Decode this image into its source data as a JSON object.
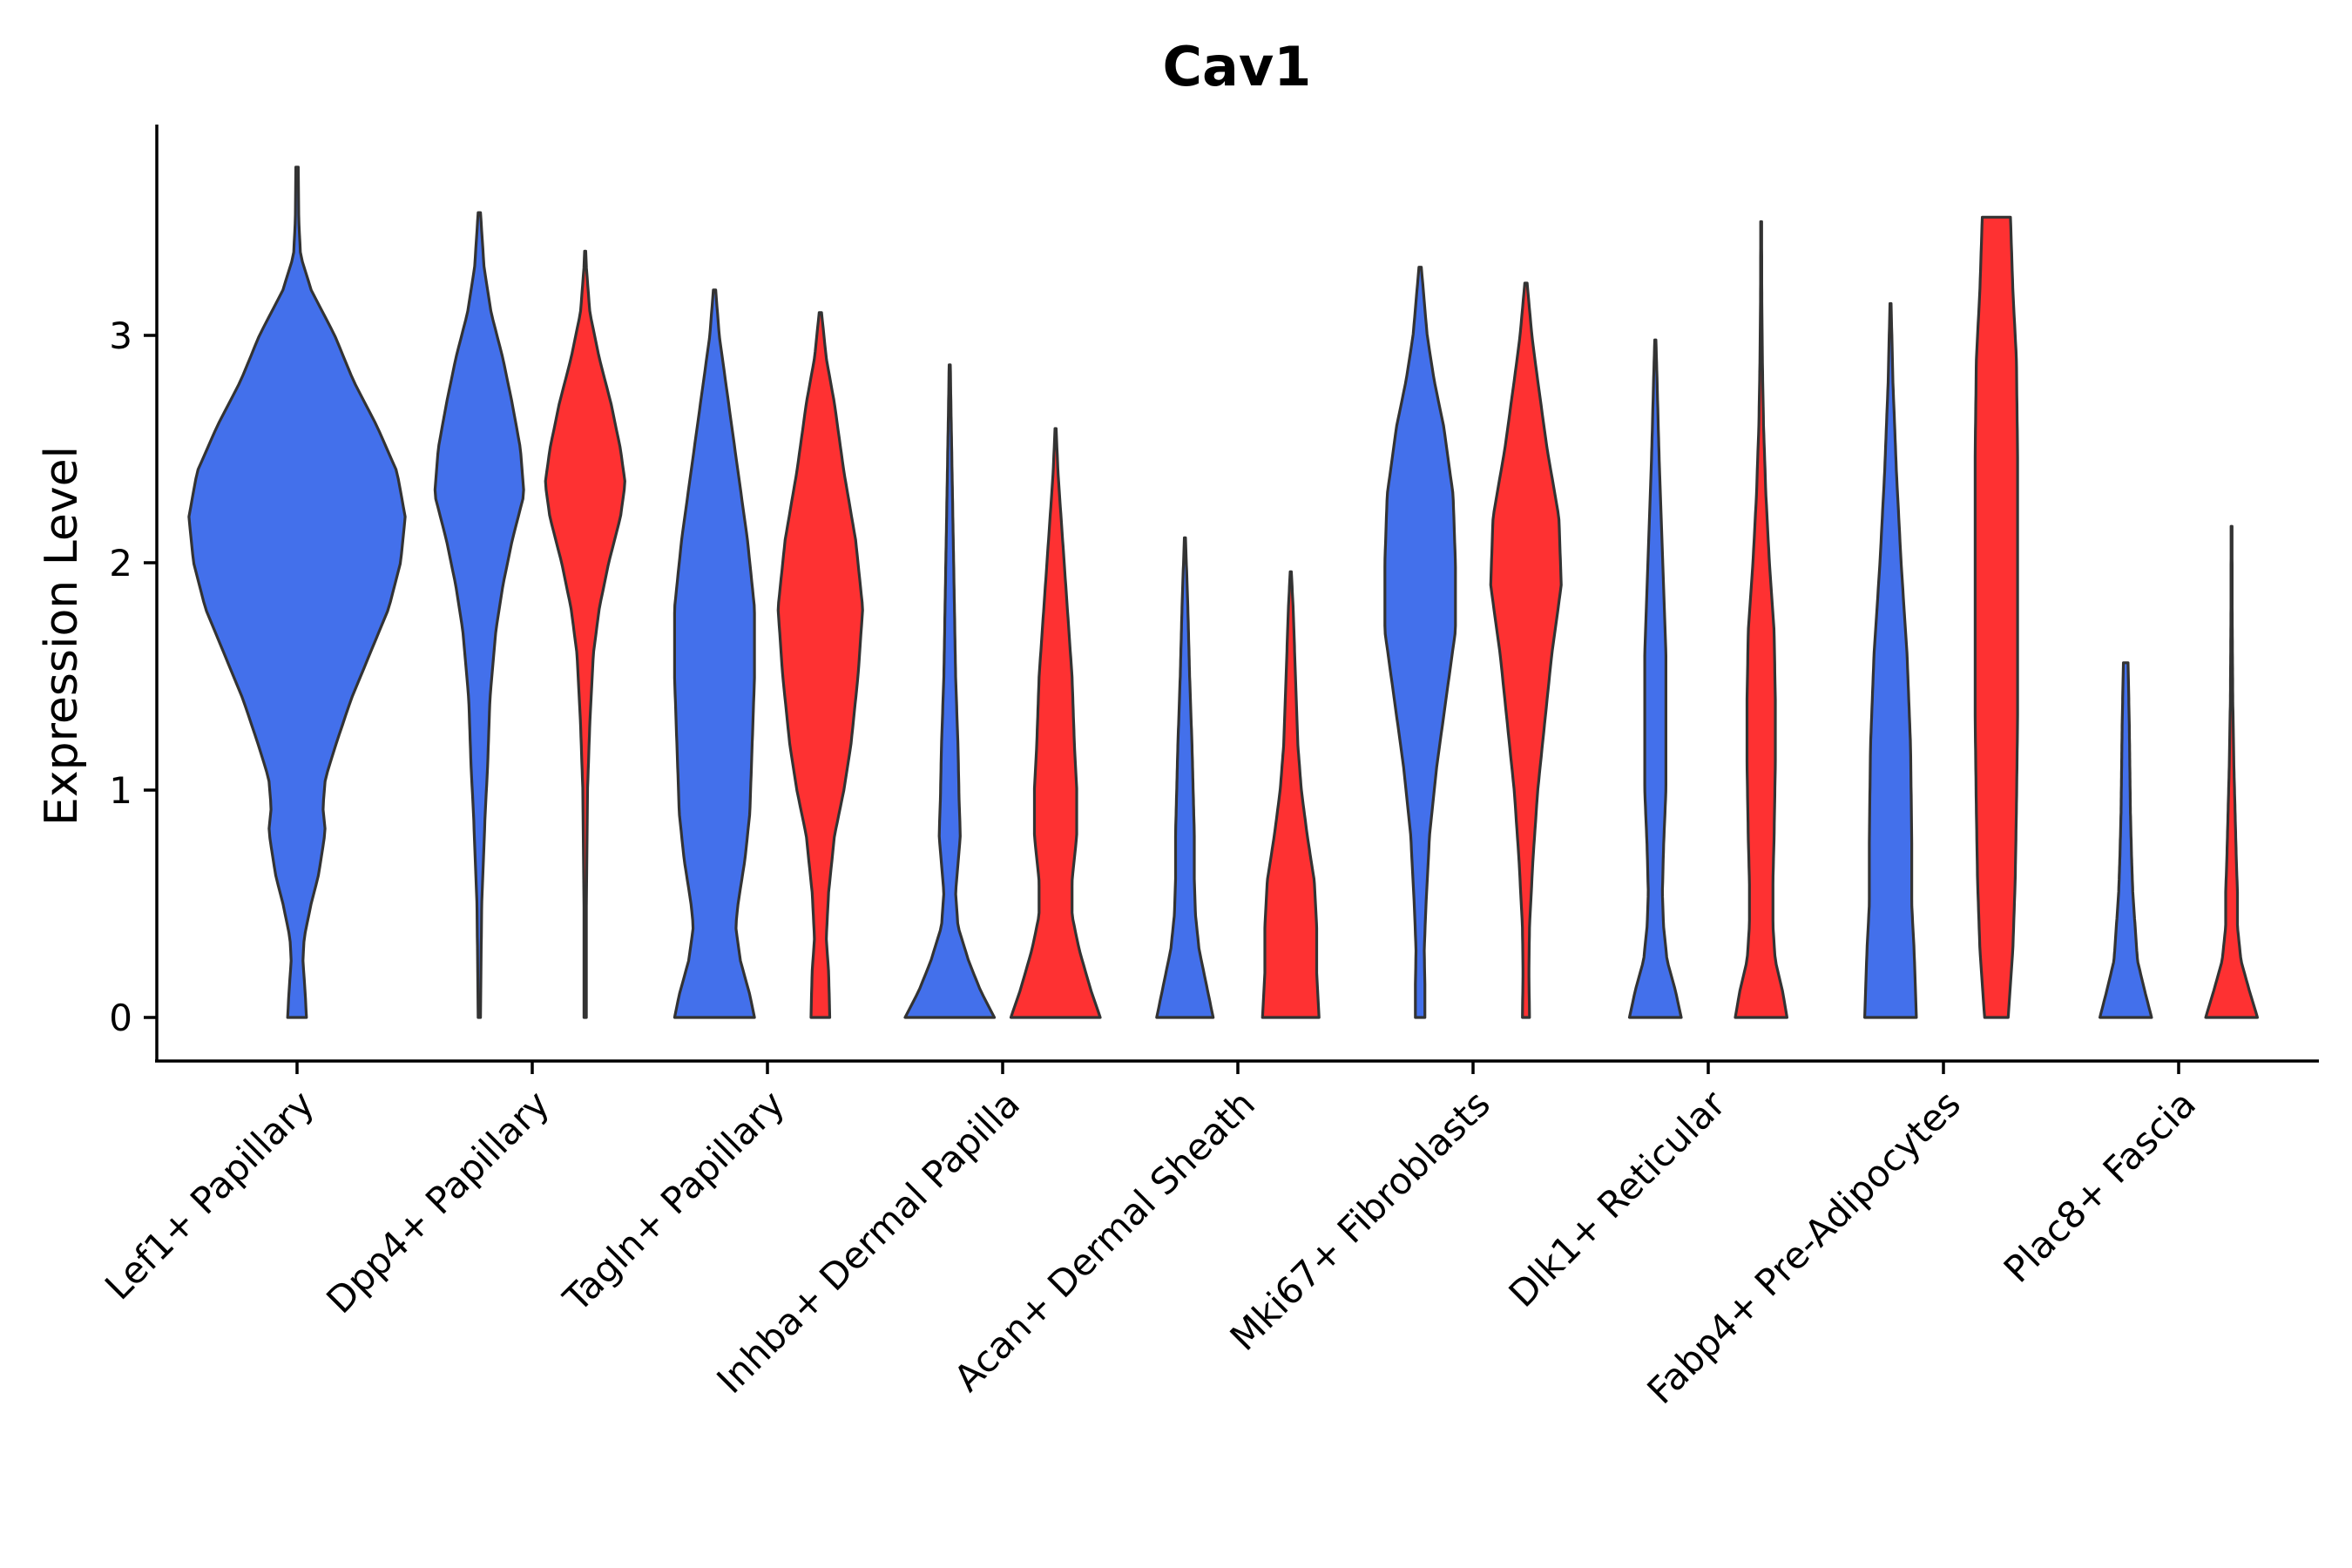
{
  "chart_data": {
    "type": "violin",
    "title": "Cav1",
    "xlabel": "",
    "ylabel": "Expression Level",
    "ylim": [
      -0.19,
      3.95
    ],
    "yticks": [
      0,
      1,
      2,
      3
    ],
    "categories": [
      "Lef1+ Papillary",
      "Dpp4+ Papillary",
      "Tagln+ Papillary",
      "Inhba+ Dermal Papilla",
      "Acan+ Dermal Sheath",
      "Mki67+ Fibroblasts",
      "Dlk1+ Reticular",
      "Fabp4+ Pre-Adipocytes",
      "Plac8+ Fascia"
    ],
    "colors": {
      "blue": "#4370EB",
      "red": "#FE3132"
    },
    "violins": [
      {
        "id": "v1",
        "color": "blue",
        "pos": 1.0,
        "min": 0,
        "max": 3.74,
        "profile": [
          [
            0,
            0.08
          ],
          [
            0.1,
            0.07
          ],
          [
            0.25,
            0.05
          ],
          [
            0.35,
            0.06
          ],
          [
            0.5,
            0.12
          ],
          [
            0.62,
            0.18
          ],
          [
            0.75,
            0.22
          ],
          [
            0.82,
            0.24
          ],
          [
            0.92,
            0.22
          ],
          [
            1.05,
            0.24
          ],
          [
            1.2,
            0.33
          ],
          [
            1.4,
            0.46
          ],
          [
            1.6,
            0.62
          ],
          [
            1.8,
            0.78
          ],
          [
            2.0,
            0.88
          ],
          [
            2.2,
            0.92
          ],
          [
            2.4,
            0.85
          ],
          [
            2.6,
            0.68
          ],
          [
            2.8,
            0.48
          ],
          [
            3.0,
            0.32
          ],
          [
            3.2,
            0.12
          ],
          [
            3.35,
            0.03
          ],
          [
            3.5,
            0.015
          ],
          [
            3.74,
            0.01
          ]
        ]
      },
      {
        "id": "v2",
        "color": "blue",
        "pos": 1.775,
        "min": 0,
        "max": 3.54,
        "profile": [
          [
            0,
            0.01
          ],
          [
            0.5,
            0.02
          ],
          [
            0.9,
            0.05
          ],
          [
            1.1,
            0.07
          ],
          [
            1.4,
            0.09
          ],
          [
            1.7,
            0.14
          ],
          [
            1.9,
            0.2
          ],
          [
            2.1,
            0.28
          ],
          [
            2.3,
            0.38
          ],
          [
            2.5,
            0.35
          ],
          [
            2.7,
            0.28
          ],
          [
            2.9,
            0.2
          ],
          [
            3.1,
            0.1
          ],
          [
            3.3,
            0.04
          ],
          [
            3.54,
            0.01
          ]
        ]
      },
      {
        "id": "v3",
        "color": "red",
        "pos": 2.225,
        "min": 0,
        "max": 3.37,
        "profile": [
          [
            0,
            0.01
          ],
          [
            0.5,
            0.01
          ],
          [
            1.0,
            0.02
          ],
          [
            1.3,
            0.04
          ],
          [
            1.6,
            0.07
          ],
          [
            1.8,
            0.12
          ],
          [
            2.0,
            0.2
          ],
          [
            2.2,
            0.3
          ],
          [
            2.35,
            0.34
          ],
          [
            2.5,
            0.3
          ],
          [
            2.7,
            0.22
          ],
          [
            2.9,
            0.12
          ],
          [
            3.1,
            0.04
          ],
          [
            3.3,
            0.01
          ],
          [
            3.37,
            0.005
          ]
        ]
      },
      {
        "id": "v4",
        "color": "blue",
        "pos": 2.775,
        "min": 0,
        "max": 3.2,
        "profile": [
          [
            0,
            0.34
          ],
          [
            0.1,
            0.3
          ],
          [
            0.25,
            0.22
          ],
          [
            0.4,
            0.18
          ],
          [
            0.5,
            0.2
          ],
          [
            0.7,
            0.26
          ],
          [
            0.9,
            0.3
          ],
          [
            1.2,
            0.32
          ],
          [
            1.5,
            0.34
          ],
          [
            1.8,
            0.34
          ],
          [
            2.1,
            0.28
          ],
          [
            2.4,
            0.2
          ],
          [
            2.7,
            0.12
          ],
          [
            3.0,
            0.04
          ],
          [
            3.2,
            0.01
          ]
        ]
      },
      {
        "id": "v5",
        "color": "red",
        "pos": 3.225,
        "min": 0,
        "max": 3.1,
        "profile": [
          [
            0,
            0.08
          ],
          [
            0.2,
            0.07
          ],
          [
            0.35,
            0.05
          ],
          [
            0.55,
            0.07
          ],
          [
            0.8,
            0.12
          ],
          [
            1.0,
            0.2
          ],
          [
            1.2,
            0.26
          ],
          [
            1.5,
            0.32
          ],
          [
            1.8,
            0.36
          ],
          [
            2.1,
            0.3
          ],
          [
            2.4,
            0.2
          ],
          [
            2.7,
            0.12
          ],
          [
            2.9,
            0.05
          ],
          [
            3.1,
            0.01
          ]
        ]
      },
      {
        "id": "v6",
        "color": "blue",
        "pos": 3.775,
        "min": 0,
        "max": 2.87,
        "profile": [
          [
            0,
            0.38
          ],
          [
            0.12,
            0.26
          ],
          [
            0.25,
            0.16
          ],
          [
            0.4,
            0.07
          ],
          [
            0.55,
            0.05
          ],
          [
            0.8,
            0.09
          ],
          [
            0.95,
            0.08
          ],
          [
            1.2,
            0.07
          ],
          [
            1.5,
            0.05
          ],
          [
            1.8,
            0.04
          ],
          [
            2.1,
            0.03
          ],
          [
            2.4,
            0.02
          ],
          [
            2.7,
            0.01
          ],
          [
            2.87,
            0.005
          ]
        ]
      },
      {
        "id": "v7",
        "color": "red",
        "pos": 4.225,
        "min": 0,
        "max": 2.59,
        "profile": [
          [
            0,
            0.38
          ],
          [
            0.12,
            0.3
          ],
          [
            0.3,
            0.2
          ],
          [
            0.45,
            0.14
          ],
          [
            0.6,
            0.14
          ],
          [
            0.8,
            0.18
          ],
          [
            1.0,
            0.18
          ],
          [
            1.2,
            0.16
          ],
          [
            1.5,
            0.14
          ],
          [
            1.8,
            0.1
          ],
          [
            2.1,
            0.06
          ],
          [
            2.4,
            0.02
          ],
          [
            2.59,
            0.005
          ]
        ]
      },
      {
        "id": "v8",
        "color": "blue",
        "pos": 4.775,
        "min": 0,
        "max": 2.11,
        "profile": [
          [
            0,
            0.24
          ],
          [
            0.15,
            0.18
          ],
          [
            0.3,
            0.12
          ],
          [
            0.45,
            0.09
          ],
          [
            0.6,
            0.08
          ],
          [
            0.8,
            0.08
          ],
          [
            1.0,
            0.07
          ],
          [
            1.2,
            0.06
          ],
          [
            1.5,
            0.04
          ],
          [
            1.8,
            0.025
          ],
          [
            2.11,
            0.005
          ]
        ]
      },
      {
        "id": "v9",
        "color": "red",
        "pos": 5.225,
        "min": 0,
        "max": 1.96,
        "profile": [
          [
            0,
            0.24
          ],
          [
            0.2,
            0.22
          ],
          [
            0.4,
            0.22
          ],
          [
            0.6,
            0.2
          ],
          [
            0.8,
            0.14
          ],
          [
            1.0,
            0.09
          ],
          [
            1.2,
            0.06
          ],
          [
            1.5,
            0.04
          ],
          [
            1.8,
            0.02
          ],
          [
            1.96,
            0.005
          ]
        ]
      },
      {
        "id": "v10",
        "color": "blue",
        "pos": 5.775,
        "min": 0,
        "max": 3.3,
        "profile": [
          [
            0,
            0.04
          ],
          [
            0.15,
            0.04
          ],
          [
            0.3,
            0.035
          ],
          [
            0.5,
            0.05
          ],
          [
            0.8,
            0.08
          ],
          [
            1.1,
            0.14
          ],
          [
            1.4,
            0.22
          ],
          [
            1.7,
            0.3
          ],
          [
            2.0,
            0.3
          ],
          [
            2.3,
            0.28
          ],
          [
            2.6,
            0.2
          ],
          [
            2.8,
            0.12
          ],
          [
            3.0,
            0.06
          ],
          [
            3.3,
            0.01
          ]
        ]
      },
      {
        "id": "v11",
        "color": "red",
        "pos": 6.225,
        "min": 0,
        "max": 3.23,
        "profile": [
          [
            0,
            0.03
          ],
          [
            0.2,
            0.025
          ],
          [
            0.4,
            0.03
          ],
          [
            0.7,
            0.06
          ],
          [
            1.0,
            0.1
          ],
          [
            1.3,
            0.16
          ],
          [
            1.6,
            0.22
          ],
          [
            1.9,
            0.3
          ],
          [
            2.2,
            0.28
          ],
          [
            2.5,
            0.18
          ],
          [
            2.8,
            0.1
          ],
          [
            3.0,
            0.05
          ],
          [
            3.23,
            0.01
          ]
        ]
      },
      {
        "id": "v12",
        "color": "blue",
        "pos": 6.775,
        "min": 0,
        "max": 2.98,
        "profile": [
          [
            0,
            0.22
          ],
          [
            0.12,
            0.17
          ],
          [
            0.25,
            0.1
          ],
          [
            0.4,
            0.07
          ],
          [
            0.55,
            0.06
          ],
          [
            0.75,
            0.07
          ],
          [
            1.0,
            0.09
          ],
          [
            1.3,
            0.09
          ],
          [
            1.6,
            0.09
          ],
          [
            1.9,
            0.07
          ],
          [
            2.2,
            0.05
          ],
          [
            2.5,
            0.03
          ],
          [
            2.8,
            0.015
          ],
          [
            2.98,
            0.005
          ]
        ]
      },
      {
        "id": "v13",
        "color": "red",
        "pos": 7.225,
        "min": 0,
        "max": 3.5,
        "profile": [
          [
            0,
            0.22
          ],
          [
            0.12,
            0.18
          ],
          [
            0.25,
            0.12
          ],
          [
            0.4,
            0.1
          ],
          [
            0.6,
            0.1
          ],
          [
            0.8,
            0.11
          ],
          [
            1.1,
            0.12
          ],
          [
            1.4,
            0.12
          ],
          [
            1.7,
            0.11
          ],
          [
            2.0,
            0.07
          ],
          [
            2.3,
            0.04
          ],
          [
            2.6,
            0.02
          ],
          [
            2.9,
            0.01
          ],
          [
            3.2,
            0.005
          ],
          [
            3.5,
            0.004
          ]
        ]
      },
      {
        "id": "v14",
        "color": "blue",
        "pos": 7.775,
        "min": 0,
        "max": 3.14,
        "profile": [
          [
            0,
            0.22
          ],
          [
            0.15,
            0.21
          ],
          [
            0.3,
            0.2
          ],
          [
            0.5,
            0.18
          ],
          [
            0.8,
            0.18
          ],
          [
            1.2,
            0.17
          ],
          [
            1.6,
            0.14
          ],
          [
            2.0,
            0.09
          ],
          [
            2.4,
            0.05
          ],
          [
            2.8,
            0.02
          ],
          [
            3.14,
            0.005
          ]
        ]
      },
      {
        "id": "v15",
        "color": "red",
        "pos": 8.225,
        "min": 0,
        "max": 3.52,
        "profile": [
          [
            0,
            0.1
          ],
          [
            0.3,
            0.14
          ],
          [
            0.6,
            0.16
          ],
          [
            0.9,
            0.17
          ],
          [
            1.3,
            0.18
          ],
          [
            1.7,
            0.18
          ],
          [
            2.1,
            0.18
          ],
          [
            2.5,
            0.18
          ],
          [
            2.9,
            0.17
          ],
          [
            3.2,
            0.14
          ],
          [
            3.52,
            0.12
          ]
        ]
      },
      {
        "id": "v16",
        "color": "blue",
        "pos": 8.775,
        "min": 0,
        "max": 1.56,
        "profile": [
          [
            0,
            0.22
          ],
          [
            0.12,
            0.16
          ],
          [
            0.25,
            0.1
          ],
          [
            0.4,
            0.08
          ],
          [
            0.55,
            0.06
          ],
          [
            0.7,
            0.05
          ],
          [
            0.9,
            0.04
          ],
          [
            1.1,
            0.035
          ],
          [
            1.3,
            0.03
          ],
          [
            1.56,
            0.02
          ]
        ]
      },
      {
        "id": "v17",
        "color": "red",
        "pos": 9.225,
        "min": 0,
        "max": 2.16,
        "profile": [
          [
            0,
            0.22
          ],
          [
            0.12,
            0.15
          ],
          [
            0.25,
            0.08
          ],
          [
            0.4,
            0.05
          ],
          [
            0.55,
            0.05
          ],
          [
            0.7,
            0.04
          ],
          [
            0.9,
            0.03
          ],
          [
            1.1,
            0.02
          ],
          [
            1.4,
            0.01
          ],
          [
            1.8,
            0.005
          ],
          [
            2.16,
            0.004
          ]
        ]
      }
    ]
  }
}
